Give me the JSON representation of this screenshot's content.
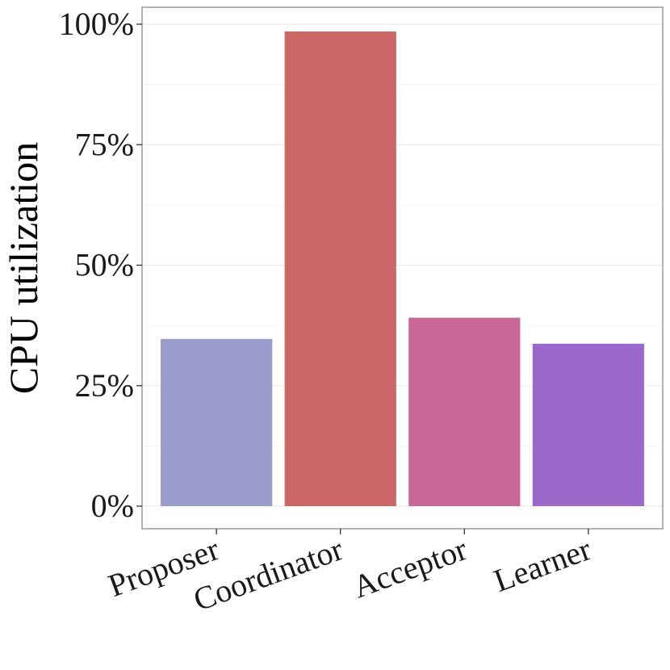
{
  "chart_data": {
    "type": "bar",
    "categories": [
      "Proposer",
      "Coordinator",
      "Acceptor",
      "Learner"
    ],
    "values": [
      34.7,
      98.5,
      39.1,
      33.7
    ],
    "colors": [
      "#9b9bcb",
      "#cb6666",
      "#cb6796",
      "#9a68cb"
    ],
    "title": "",
    "xlabel": "",
    "ylabel": "CPU utilization",
    "ylim": [
      -5,
      103
    ],
    "yticks": [
      0,
      25,
      50,
      75,
      100
    ],
    "ytick_labels": [
      "0%",
      "25%",
      "50%",
      "75%",
      "100%"
    ],
    "grid": true,
    "legend": "none",
    "xtick_rotation": "angled"
  }
}
